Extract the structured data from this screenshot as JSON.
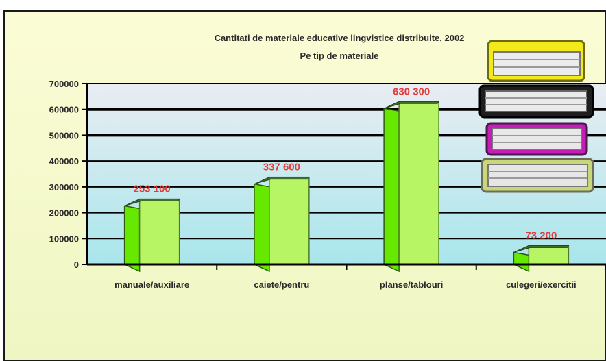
{
  "chart_data": {
    "type": "bar",
    "title": "Cantitati de materiale educative lingvistice distribuite, 2002",
    "subtitle": "Pe tip de materiale",
    "categories": [
      "manuale/auxiliare",
      "caiete/pentru",
      "planse/tablouri",
      "culegeri/exercitii"
    ],
    "values": [
      253100,
      337600,
      630300,
      73200
    ],
    "data_labels": [
      "253 100",
      "337 600",
      "630 300",
      "73 200"
    ],
    "yticks": [
      "0",
      "100000",
      "200000",
      "300000",
      "400000",
      "500000",
      "600000",
      "700000"
    ],
    "ylim": [
      0,
      700000
    ],
    "xlabel": "",
    "ylabel": "",
    "grid": true,
    "legend": "none",
    "colors": {
      "bar_front": "#b8f565",
      "bar_side": "#66e800",
      "bar_top": "#3f6f2a",
      "label": "#e23b3b",
      "plot_top": "#e9edf2",
      "plot_bottom": "#a8e6ec",
      "panel": "#f6f8c6",
      "gridline": "#000000"
    }
  }
}
